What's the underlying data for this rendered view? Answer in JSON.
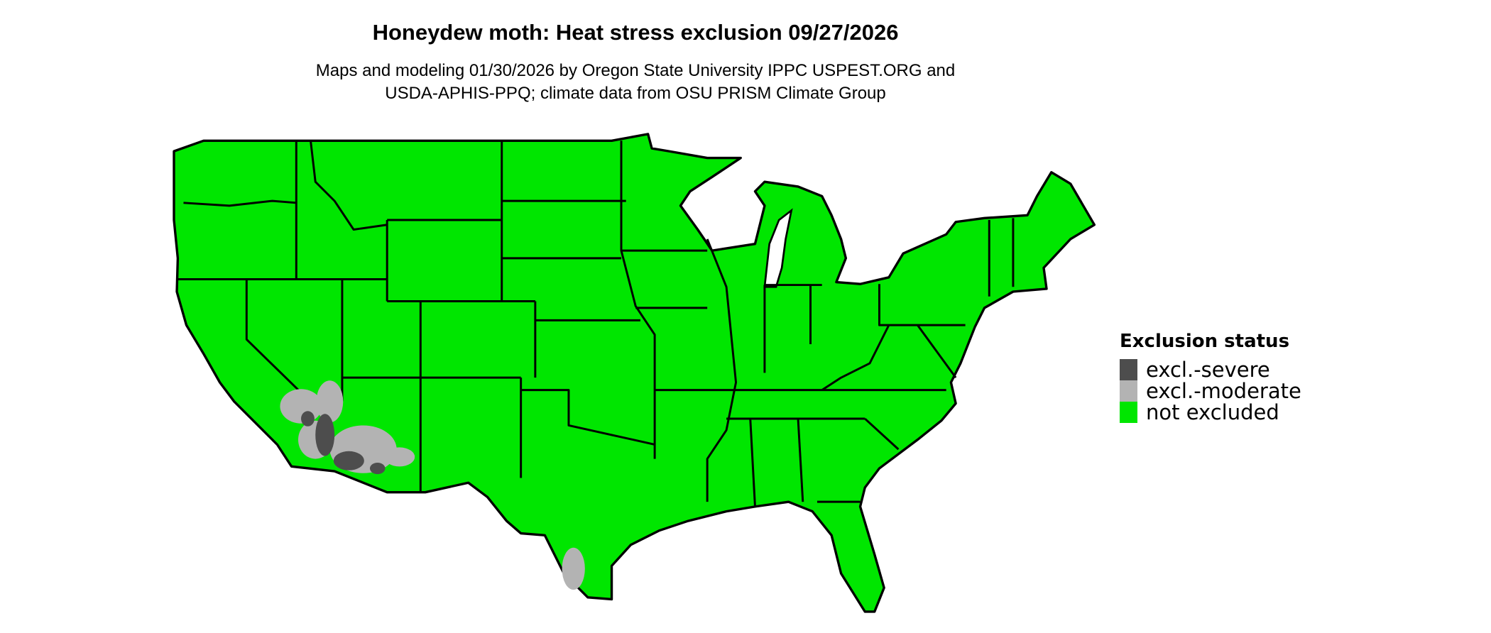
{
  "title": "Honeydew moth: Heat stress exclusion 09/27/2026",
  "subtitle_lines": [
    "Maps and modeling 01/30/2026 by Oregon State University IPPC USPEST.ORG and",
    "USDA-APHIS-PPQ; climate data from OSU PRISM Climate Group"
  ],
  "map": {
    "region": "contiguous United States",
    "predominant_status": "not excluded",
    "excluded_areas": [
      "southwestern Arizona / southeastern California / southern Nevada",
      "southern Texas"
    ]
  },
  "legend": {
    "title": "Exclusion status",
    "items": [
      {
        "label": "excl.-severe",
        "color": "#4d4d4d"
      },
      {
        "label": "excl.-moderate",
        "color": "#b3b3b3"
      },
      {
        "label": "not excluded",
        "color": "#00e600"
      }
    ]
  }
}
